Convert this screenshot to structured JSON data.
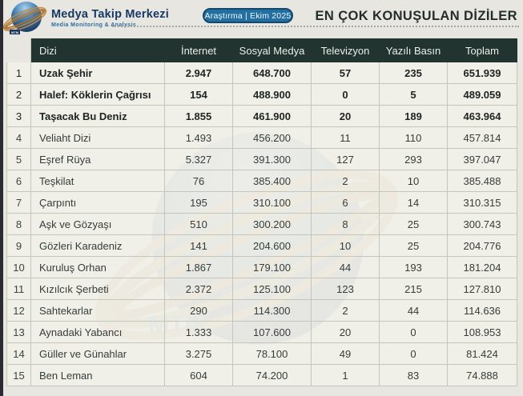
{
  "page": {
    "title": "EN ÇOK KONUŞULAN DİZİLER",
    "background_color": "#e7e6e0",
    "accent_colors": {
      "table_header_bg": "#213430",
      "badge_bg": "#2170a1",
      "brand_navy": "#163a63",
      "swoosh_copper": "#bd8343",
      "globe_blue": "#2f6da5",
      "row_bg": "#f1f0e9",
      "grid_border": "#c4c6bc"
    }
  },
  "brand": {
    "name": "Medya Takip Merkezi",
    "tagline": "Media Monitoring & Analysis",
    "logo_label": "MTM"
  },
  "badge": {
    "text": "Araştırma | Ekim 2025"
  },
  "table": {
    "columns": [
      "Dizi",
      "İnternet",
      "Sosyal Medya",
      "Televizyon",
      "Yazılı Basın",
      "Toplam"
    ],
    "rows": [
      {
        "rank": "1",
        "name": "Uzak Şehir",
        "cells": [
          "2.947",
          "648.700",
          "57",
          "235",
          "651.939"
        ],
        "bold": true
      },
      {
        "rank": "2",
        "name": "Halef: Köklerin Çağrısı",
        "cells": [
          "154",
          "488.900",
          "0",
          "5",
          "489.059"
        ],
        "bold": true
      },
      {
        "rank": "3",
        "name": "Taşacak Bu Deniz",
        "cells": [
          "1.855",
          "461.900",
          "20",
          "189",
          "463.964"
        ],
        "bold": true
      },
      {
        "rank": "4",
        "name": "Veliaht Dizi",
        "cells": [
          "1.493",
          "456.200",
          "11",
          "110",
          "457.814"
        ],
        "bold": false
      },
      {
        "rank": "5",
        "name": "Eşref Rüya",
        "cells": [
          "5.327",
          "391.300",
          "127",
          "293",
          "397.047"
        ],
        "bold": false
      },
      {
        "rank": "6",
        "name": "Teşkilat",
        "cells": [
          "76",
          "385.400",
          "2",
          "10",
          "385.488"
        ],
        "bold": false
      },
      {
        "rank": "7",
        "name": "Çarpıntı",
        "cells": [
          "195",
          "310.100",
          "6",
          "14",
          "310.315"
        ],
        "bold": false
      },
      {
        "rank": "8",
        "name": "Aşk ve Gözyaşı",
        "cells": [
          "510",
          "300.200",
          "8",
          "25",
          "300.743"
        ],
        "bold": false
      },
      {
        "rank": "9",
        "name": "Gözleri Karadeniz",
        "cells": [
          "141",
          "204.600",
          "10",
          "25",
          "204.776"
        ],
        "bold": false
      },
      {
        "rank": "10",
        "name": "Kuruluş Orhan",
        "cells": [
          "1.867",
          "179.100",
          "44",
          "193",
          "181.204"
        ],
        "bold": false
      },
      {
        "rank": "11",
        "name": "Kızılcık Şerbeti",
        "cells": [
          "2.372",
          "125.100",
          "123",
          "215",
          "127.810"
        ],
        "bold": false
      },
      {
        "rank": "12",
        "name": "Sahtekarlar",
        "cells": [
          "290",
          "114.300",
          "2",
          "44",
          "114.636"
        ],
        "bold": false
      },
      {
        "rank": "13",
        "name": "Aynadaki Yabancı",
        "cells": [
          "1.333",
          "107.600",
          "20",
          "0",
          "108.953"
        ],
        "bold": false
      },
      {
        "rank": "14",
        "name": "Güller ve Günahlar",
        "cells": [
          "3.275",
          "78.100",
          "49",
          "0",
          "81.424"
        ],
        "bold": false
      },
      {
        "rank": "15",
        "name": "Ben Leman",
        "cells": [
          "604",
          "74.200",
          "1",
          "83",
          "74.888"
        ],
        "bold": false
      }
    ]
  },
  "chart_data": {
    "type": "table",
    "title": "EN ÇOK KONUŞULAN DİZİLER",
    "subtitle": "Araştırma | Ekim 2025",
    "columns": [
      "Dizi",
      "İnternet",
      "Sosyal Medya",
      "Televizyon",
      "Yazılı Basın",
      "Toplam"
    ],
    "rows": [
      [
        "Uzak Şehir",
        2947,
        648700,
        57,
        235,
        651939
      ],
      [
        "Halef: Köklerin Çağrısı",
        154,
        488900,
        0,
        5,
        489059
      ],
      [
        "Taşacak Bu Deniz",
        1855,
        461900,
        20,
        189,
        463964
      ],
      [
        "Veliaht Dizi",
        1493,
        456200,
        11,
        110,
        457814
      ],
      [
        "Eşref Rüya",
        5327,
        391300,
        127,
        293,
        397047
      ],
      [
        "Teşkilat",
        76,
        385400,
        2,
        10,
        385488
      ],
      [
        "Çarpıntı",
        195,
        310100,
        6,
        14,
        310315
      ],
      [
        "Aşk ve Gözyaşı",
        510,
        300200,
        8,
        25,
        300743
      ],
      [
        "Gözleri Karadeniz",
        141,
        204600,
        10,
        25,
        204776
      ],
      [
        "Kuruluş Orhan",
        1867,
        179100,
        44,
        193,
        181204
      ],
      [
        "Kızılcık Şerbeti",
        2372,
        125100,
        123,
        215,
        127810
      ],
      [
        "Sahtekarlar",
        290,
        114300,
        2,
        44,
        114636
      ],
      [
        "Aynadaki Yabancı",
        1333,
        107600,
        20,
        0,
        108953
      ],
      [
        "Güller ve Günahlar",
        3275,
        78100,
        49,
        0,
        81424
      ],
      [
        "Ben Leman",
        604,
        74200,
        1,
        83,
        74888
      ]
    ]
  }
}
